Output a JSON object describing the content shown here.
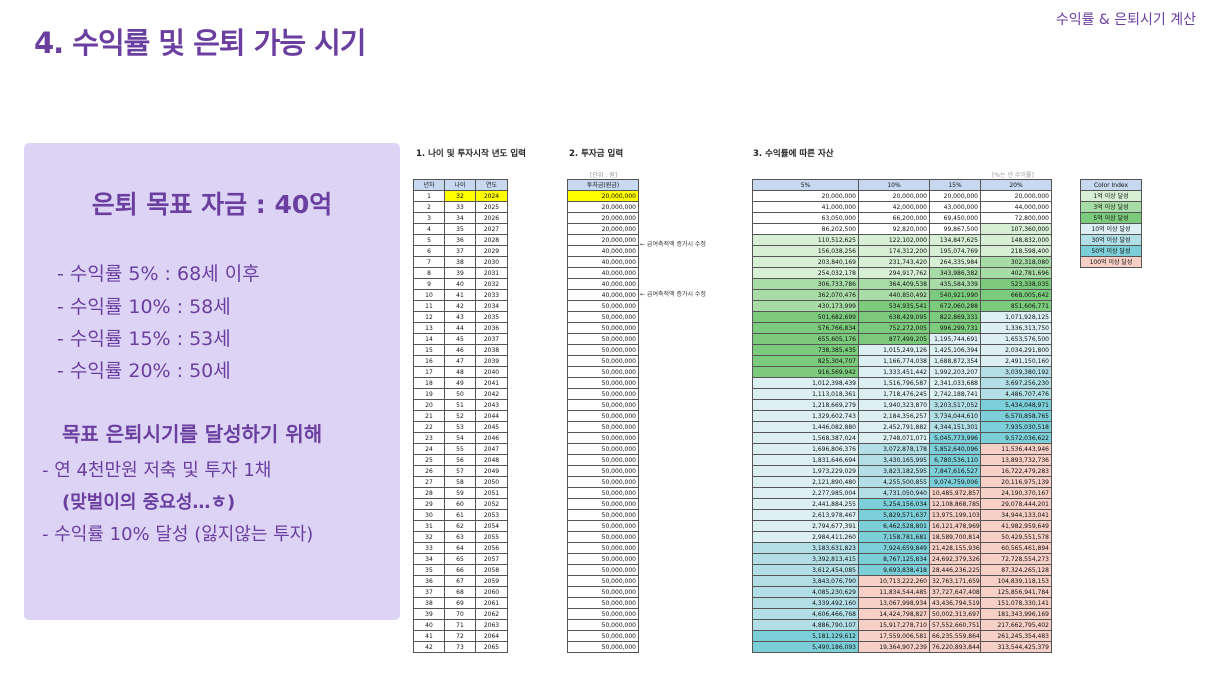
{
  "slide": {
    "title": "4.  수익률 및 은퇴 가능 시기",
    "corner_label": "수익률 & 은퇴시기 계산"
  },
  "summary": {
    "goal": "은퇴 목표 자금 : 40억",
    "rates": [
      "- 수익률  5% : 68세 이후",
      "- 수익률 10% : 58세",
      "- 수익률 15% : 53세",
      "- 수익률 20% : 50세"
    ],
    "strategy_title": "목표 은퇴시기를 달성하기 위해",
    "strategy": [
      "- 연 4천만원 저축 및 투자 1채",
      "(맞벌이의 중요성…ㅎ)",
      "- 수익률 10% 달성 (잃지않는 투자)"
    ]
  },
  "section_titles": {
    "s1": "1. 나이 및 투자시작 년도 입력",
    "s2": "2. 투자금 입력",
    "s3": "3. 수익률에 따른 자산"
  },
  "units": {
    "u2": "[단위 : 원]",
    "u3": "[%는 년 수익률]"
  },
  "table1": {
    "headers": [
      "년차",
      "나이",
      "연도"
    ],
    "rows": [
      [
        "1",
        "32",
        "2024"
      ],
      [
        "2",
        "33",
        "2025"
      ],
      [
        "3",
        "34",
        "2026"
      ],
      [
        "4",
        "35",
        "2027"
      ],
      [
        "5",
        "36",
        "2028"
      ],
      [
        "6",
        "37",
        "2029"
      ],
      [
        "7",
        "38",
        "2030"
      ],
      [
        "8",
        "39",
        "2031"
      ],
      [
        "9",
        "40",
        "2032"
      ],
      [
        "10",
        "41",
        "2033"
      ],
      [
        "11",
        "42",
        "2034"
      ],
      [
        "12",
        "43",
        "2035"
      ],
      [
        "13",
        "44",
        "2036"
      ],
      [
        "14",
        "45",
        "2037"
      ],
      [
        "15",
        "46",
        "2038"
      ],
      [
        "16",
        "47",
        "2039"
      ],
      [
        "17",
        "48",
        "2040"
      ],
      [
        "18",
        "49",
        "2041"
      ],
      [
        "19",
        "50",
        "2042"
      ],
      [
        "20",
        "51",
        "2043"
      ],
      [
        "21",
        "52",
        "2044"
      ],
      [
        "22",
        "53",
        "2045"
      ],
      [
        "23",
        "54",
        "2046"
      ],
      [
        "24",
        "55",
        "2047"
      ],
      [
        "25",
        "56",
        "2048"
      ],
      [
        "26",
        "57",
        "2049"
      ],
      [
        "27",
        "58",
        "2050"
      ],
      [
        "28",
        "59",
        "2051"
      ],
      [
        "29",
        "60",
        "2052"
      ],
      [
        "30",
        "61",
        "2053"
      ],
      [
        "31",
        "62",
        "2054"
      ],
      [
        "32",
        "63",
        "2055"
      ],
      [
        "33",
        "64",
        "2056"
      ],
      [
        "34",
        "65",
        "2057"
      ],
      [
        "35",
        "66",
        "2058"
      ],
      [
        "36",
        "67",
        "2059"
      ],
      [
        "37",
        "68",
        "2060"
      ],
      [
        "38",
        "69",
        "2061"
      ],
      [
        "39",
        "70",
        "2062"
      ],
      [
        "40",
        "71",
        "2063"
      ],
      [
        "41",
        "72",
        "2064"
      ],
      [
        "42",
        "73",
        "2065"
      ]
    ]
  },
  "table2": {
    "header": "투자금(원금)",
    "values": [
      "20,000,000",
      "20,000,000",
      "20,000,000",
      "20,000,000",
      "20,000,000",
      "40,000,000",
      "40,000,000",
      "40,000,000",
      "40,000,000",
      "40,000,000",
      "50,000,000",
      "50,000,000",
      "50,000,000",
      "50,000,000",
      "50,000,000",
      "50,000,000",
      "50,000,000",
      "50,000,000",
      "50,000,000",
      "50,000,000",
      "50,000,000",
      "50,000,000",
      "50,000,000",
      "50,000,000",
      "50,000,000",
      "50,000,000",
      "50,000,000",
      "50,000,000",
      "50,000,000",
      "50,000,000",
      "50,000,000",
      "50,000,000",
      "50,000,000",
      "50,000,000",
      "50,000,000",
      "50,000,000",
      "50,000,000",
      "50,000,000",
      "50,000,000",
      "50,000,000",
      "50,000,000",
      "50,000,000"
    ],
    "notes": [
      "← 급여축적액 증가시 수정",
      "← 급여축적액 증가시 수정"
    ]
  },
  "table3": {
    "headers": [
      "5%",
      "10%",
      "15%",
      "20%"
    ],
    "rows": [
      [
        "20,000,000",
        "20,000,000",
        "20,000,000",
        "20,000,000"
      ],
      [
        "41,000,000",
        "42,000,000",
        "43,000,000",
        "44,000,000"
      ],
      [
        "63,050,000",
        "66,200,000",
        "69,450,000",
        "72,800,000"
      ],
      [
        "86,202,500",
        "92,820,000",
        "99,867,500",
        "107,360,000"
      ],
      [
        "110,512,625",
        "122,102,000",
        "134,847,625",
        "148,832,000"
      ],
      [
        "156,038,256",
        "174,312,200",
        "195,074,769",
        "218,598,400"
      ],
      [
        "203,840,169",
        "231,743,420",
        "264,335,984",
        "302,318,080"
      ],
      [
        "254,032,178",
        "294,917,762",
        "343,986,382",
        "402,781,696"
      ],
      [
        "306,733,786",
        "364,409,538",
        "435,584,339",
        "523,338,035"
      ],
      [
        "362,070,476",
        "440,850,492",
        "540,921,990",
        "668,005,642"
      ],
      [
        "430,173,999",
        "534,935,541",
        "672,060,288",
        "851,606,771"
      ],
      [
        "501,682,699",
        "638,429,095",
        "822,869,331",
        "1,071,928,125"
      ],
      [
        "576,766,834",
        "752,272,005",
        "996,299,731",
        "1,336,313,750"
      ],
      [
        "655,605,176",
        "877,499,205",
        "1,195,744,691",
        "1,653,576,500"
      ],
      [
        "738,385,435",
        "1,015,249,126",
        "1,425,106,394",
        "2,034,291,800"
      ],
      [
        "825,304,707",
        "1,166,774,038",
        "1,688,872,354",
        "2,491,150,160"
      ],
      [
        "916,569,942",
        "1,333,451,442",
        "1,992,203,207",
        "3,039,380,192"
      ],
      [
        "1,012,398,439",
        "1,516,796,587",
        "2,341,033,688",
        "3,697,256,230"
      ],
      [
        "1,113,018,361",
        "1,718,476,245",
        "2,742,188,741",
        "4,486,707,476"
      ],
      [
        "1,218,669,279",
        "1,940,323,870",
        "3,203,517,052",
        "5,434,048,971"
      ],
      [
        "1,329,602,743",
        "2,184,356,257",
        "3,734,044,610",
        "6,570,858,765"
      ],
      [
        "1,446,082,880",
        "2,452,791,882",
        "4,344,151,301",
        "7,935,030,518"
      ],
      [
        "1,568,387,024",
        "2,748,071,071",
        "5,045,773,996",
        "9,572,036,622"
      ],
      [
        "1,696,806,376",
        "3,072,878,178",
        "5,852,640,096",
        "11,536,443,946"
      ],
      [
        "1,831,646,694",
        "3,430,165,995",
        "6,780,536,110",
        "13,893,732,736"
      ],
      [
        "1,973,229,029",
        "3,823,182,595",
        "7,847,616,527",
        "16,722,479,283"
      ],
      [
        "2,121,890,480",
        "4,255,500,855",
        "9,074,759,006",
        "20,116,975,139"
      ],
      [
        "2,277,985,004",
        "4,731,050,940",
        "10,485,972,857",
        "24,190,370,167"
      ],
      [
        "2,441,884,255",
        "5,254,156,034",
        "12,108,868,785",
        "29,078,444,201"
      ],
      [
        "2,613,978,467",
        "5,829,571,637",
        "13,975,199,103",
        "34,944,133,041"
      ],
      [
        "2,794,677,391",
        "6,462,528,801",
        "16,121,478,969",
        "41,982,959,649"
      ],
      [
        "2,984,411,260",
        "7,158,781,681",
        "18,589,700,814",
        "50,429,551,578"
      ],
      [
        "3,183,631,823",
        "7,924,659,849",
        "21,428,155,936",
        "60,565,461,894"
      ],
      [
        "3,392,813,415",
        "8,767,125,834",
        "24,692,379,326",
        "72,728,554,273"
      ],
      [
        "3,612,454,085",
        "9,693,838,418",
        "28,446,236,225",
        "87,324,265,128"
      ],
      [
        "3,843,076,790",
        "10,713,222,260",
        "32,763,171,659",
        "104,839,118,153"
      ],
      [
        "4,085,230,629",
        "11,834,544,485",
        "37,727,647,408",
        "125,856,941,784"
      ],
      [
        "4,339,492,160",
        "13,067,998,934",
        "43,436,794,519",
        "151,078,330,141"
      ],
      [
        "4,606,466,768",
        "14,424,798,827",
        "50,002,313,697",
        "181,343,996,169"
      ],
      [
        "4,886,790,107",
        "15,917,278,710",
        "57,552,660,751",
        "217,662,795,402"
      ],
      [
        "5,181,129,612",
        "17,559,006,581",
        "66,235,559,864",
        "261,245,354,483"
      ],
      [
        "5,490,186,093",
        "19,364,907,239",
        "76,220,893,844",
        "313,544,425,379"
      ]
    ]
  },
  "color_index": {
    "title": "Color Index",
    "items": [
      {
        "label": "1억 이상 달성",
        "color": "#d6efd5"
      },
      {
        "label": "3억 이상 달성",
        "color": "#a8dca6"
      },
      {
        "label": "5억 이상 달성",
        "color": "#7ccb7c"
      },
      {
        "label": "10억 이상 달성",
        "color": "#dceff3"
      },
      {
        "label": "30억 이상 달성",
        "color": "#b2dfe6"
      },
      {
        "label": "50억 이상 달성",
        "color": "#7ccfd8"
      },
      {
        "label": "100억 이상 달성",
        "color": "#f6cfc6"
      }
    ]
  }
}
